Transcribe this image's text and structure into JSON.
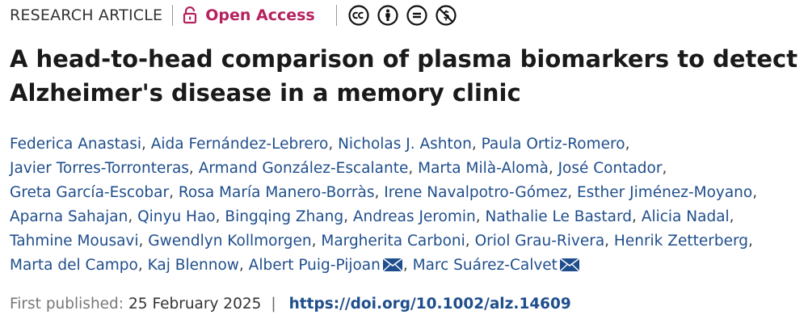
{
  "header": {
    "article_type": "RESEARCH ARTICLE",
    "access_label": "Open Access",
    "access_color": "#b5225f",
    "license_icons": [
      "cc-icon",
      "by-attribution-icon",
      "no-derivatives-icon",
      "non-commercial-icon"
    ]
  },
  "title": "A head-to-head comparison of plasma biomarkers to detect Alzheimer's disease in a memory clinic",
  "authors": [
    {
      "name": "Federica Anastasi"
    },
    {
      "name": "Aida Fernández-Lebrero"
    },
    {
      "name": "Nicholas J. Ashton"
    },
    {
      "name": "Paula Ortiz-Romero"
    },
    {
      "name": "Javier Torres-Torronteras"
    },
    {
      "name": "Armand González-Escalante"
    },
    {
      "name": "Marta Milà-Alomà"
    },
    {
      "name": "José Contador"
    },
    {
      "name": "Greta García-Escobar"
    },
    {
      "name": "Rosa María Manero-Borràs"
    },
    {
      "name": "Irene Navalpotro-Gómez"
    },
    {
      "name": "Esther Jiménez-Moyano"
    },
    {
      "name": "Aparna Sahajan"
    },
    {
      "name": "Qinyu Hao"
    },
    {
      "name": "Bingqing Zhang"
    },
    {
      "name": "Andreas Jeromin"
    },
    {
      "name": "Nathalie Le Bastard"
    },
    {
      "name": "Alicia Nadal"
    },
    {
      "name": "Tahmine Mousavi"
    },
    {
      "name": "Gwendlyn Kollmorgen"
    },
    {
      "name": "Margherita Carboni"
    },
    {
      "name": "Oriol Grau-Rivera"
    },
    {
      "name": "Henrik Zetterberg"
    },
    {
      "name": "Marta del Campo"
    },
    {
      "name": "Kaj Blennow"
    },
    {
      "name": "Albert Puig-Pijoan",
      "corresponding": true
    },
    {
      "name": "Marc Suárez-Calvet",
      "corresponding": true
    }
  ],
  "publication": {
    "label": "First published:",
    "date": "25 February 2025",
    "separator": "|",
    "doi": "https://doi.org/10.1002/alz.14609"
  },
  "colors": {
    "author_link": "#1f4e8c",
    "title_text": "#1a1a1a"
  }
}
